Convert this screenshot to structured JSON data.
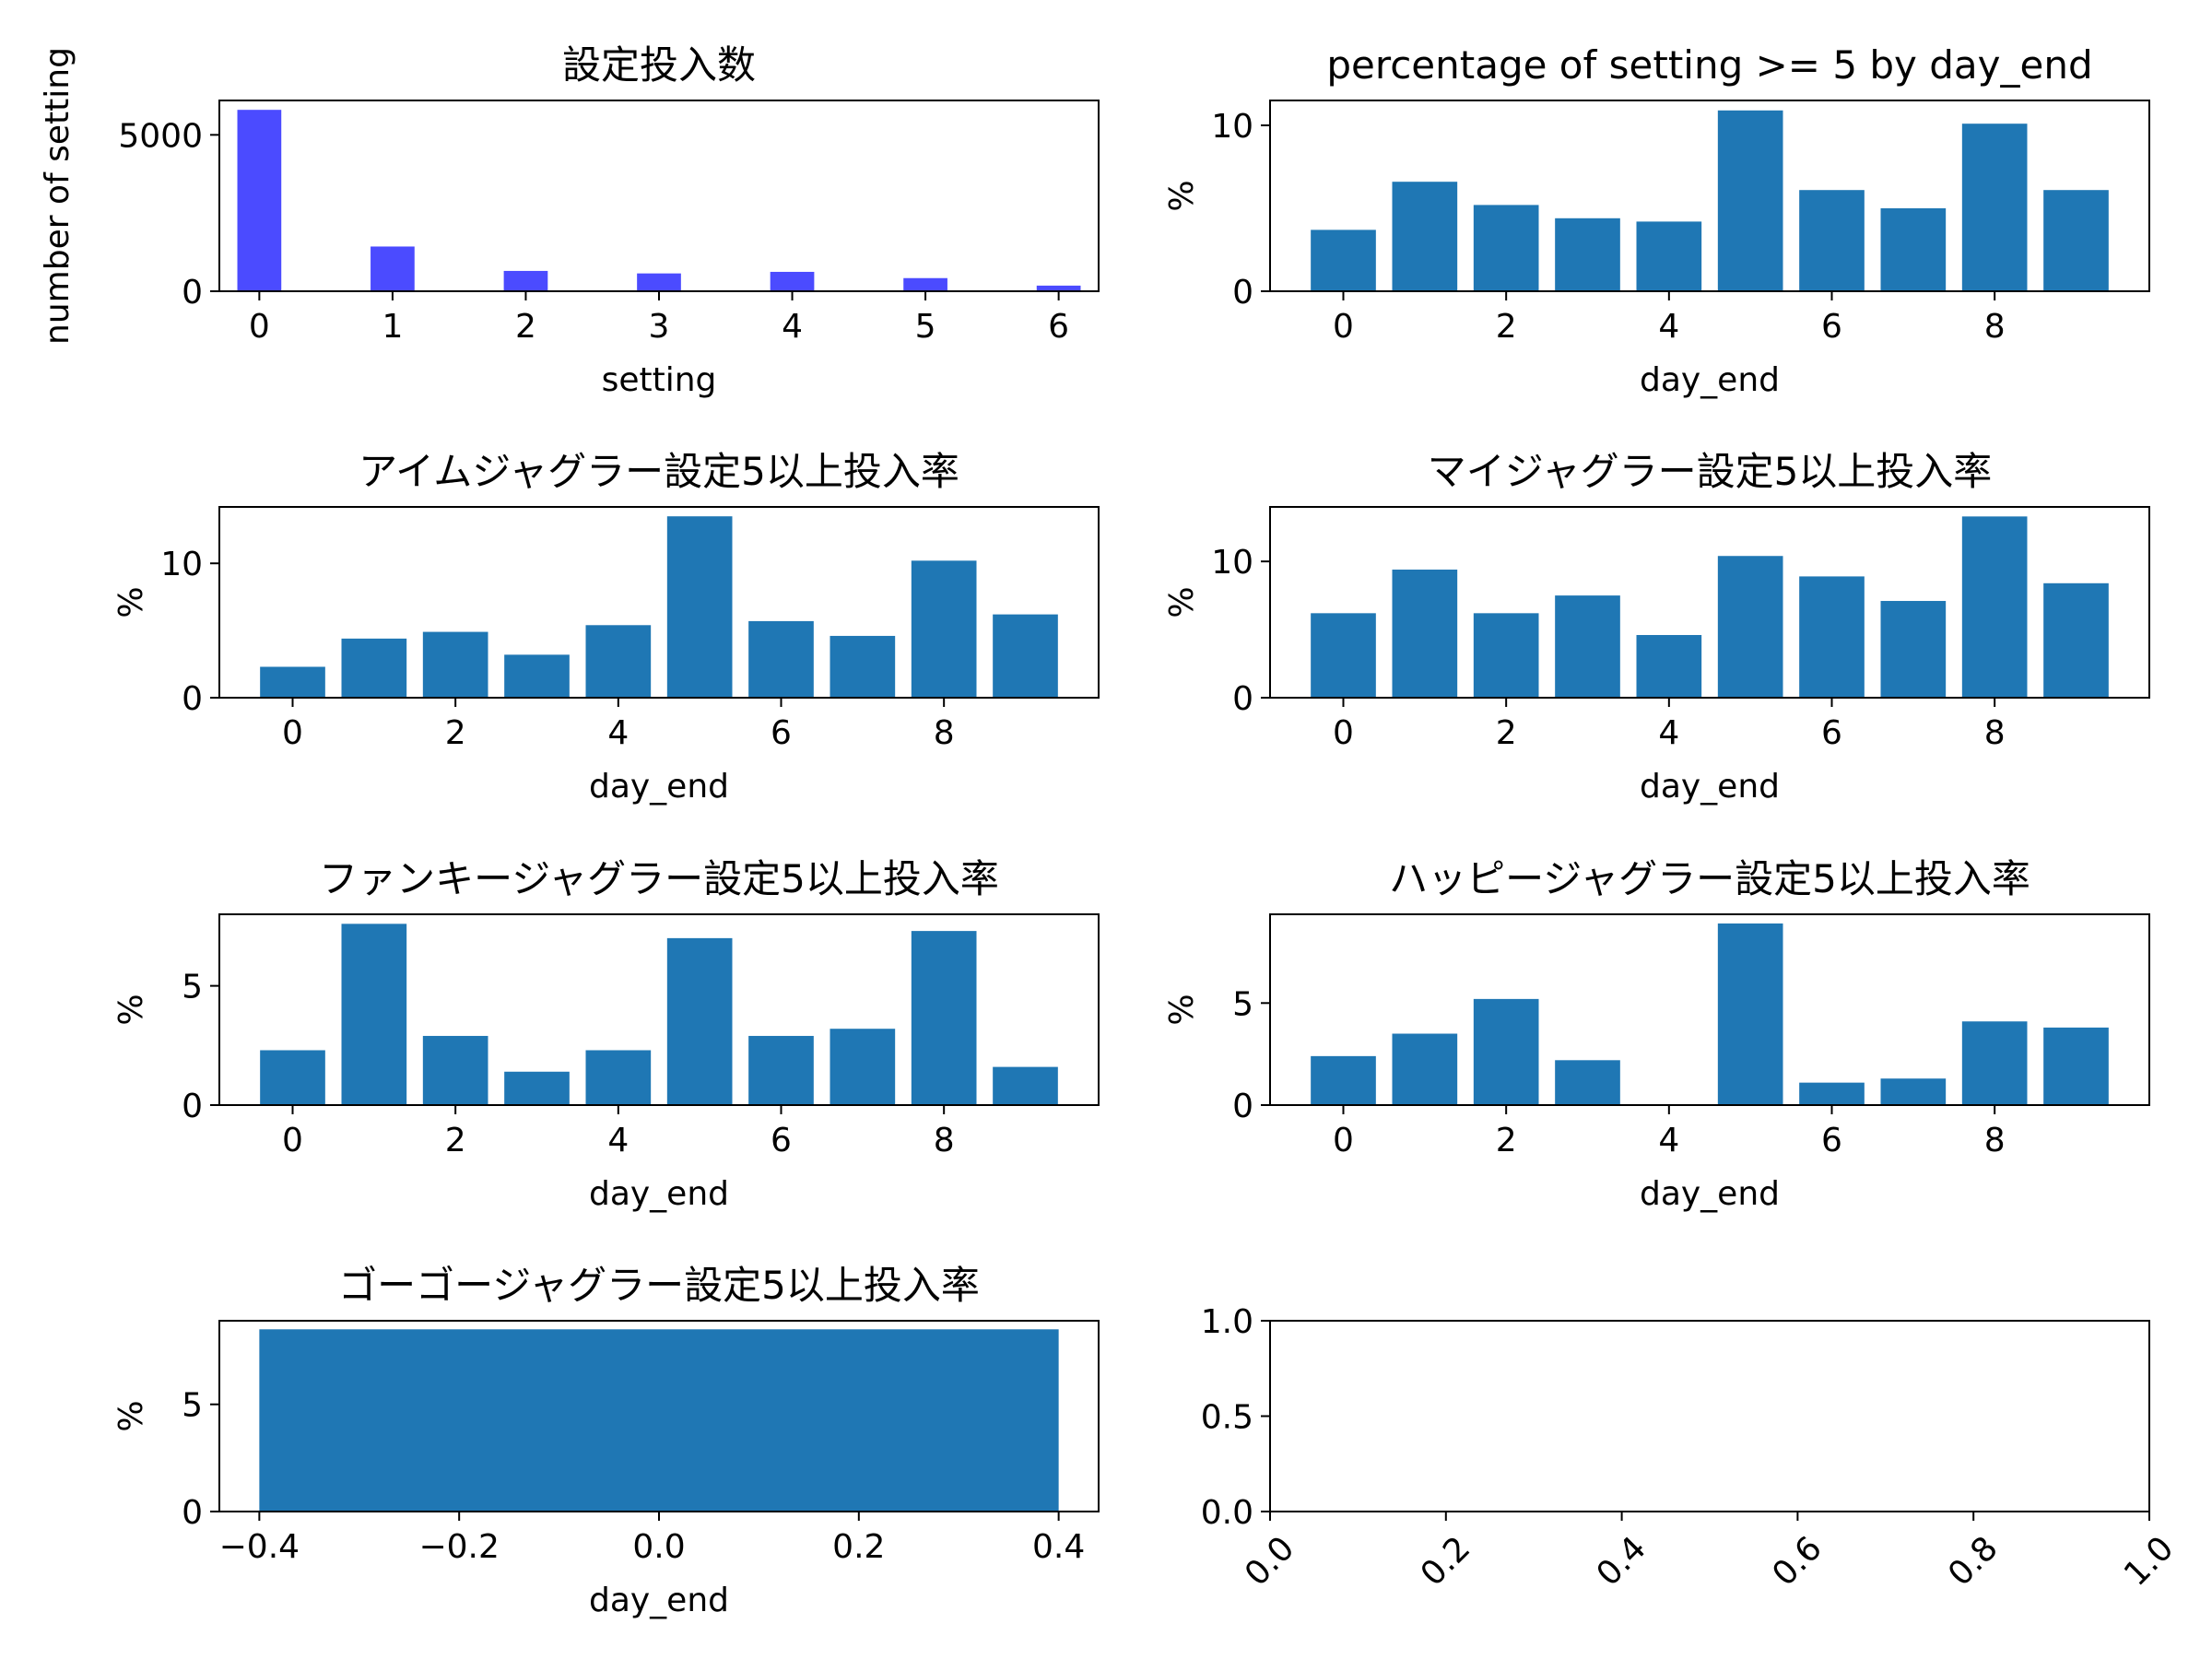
{
  "chart_data": [
    {
      "type": "bar",
      "title": "設定投入数",
      "xlabel": "setting",
      "ylabel": "number of setting",
      "color": "#4b4bff",
      "x": [
        0,
        1,
        2,
        3,
        4,
        5,
        6
      ],
      "values": [
        5800,
        1430,
        650,
        570,
        620,
        420,
        180
      ],
      "xlim": [
        -0.3,
        6.3
      ],
      "ylim": [
        0,
        6100
      ],
      "xticks": [
        "0",
        "1",
        "2",
        "3",
        "4",
        "5",
        "6"
      ],
      "yticks": [
        "0",
        "5000"
      ]
    },
    {
      "type": "bar",
      "title": "percentage of setting >= 5 by day_end",
      "xlabel": "day_end",
      "ylabel": "%",
      "color": "#1f77b4",
      "x": [
        0,
        1,
        2,
        3,
        4,
        5,
        6,
        7,
        8,
        9
      ],
      "values": [
        3.7,
        6.6,
        5.2,
        4.4,
        4.2,
        10.9,
        6.1,
        5.0,
        10.1,
        6.1
      ],
      "xlim": [
        -0.9,
        9.9
      ],
      "ylim": [
        0,
        11.5
      ],
      "xticks": [
        "0",
        "2",
        "4",
        "6",
        "8"
      ],
      "yticks": [
        "0",
        "10"
      ]
    },
    {
      "type": "bar",
      "title": "アイムジャグラー設定5以上投入率",
      "xlabel": "day_end",
      "ylabel": "%",
      "color": "#1f77b4",
      "x": [
        0,
        1,
        2,
        3,
        4,
        5,
        6,
        7,
        8,
        9
      ],
      "values": [
        2.3,
        4.4,
        4.9,
        3.2,
        5.4,
        13.5,
        5.7,
        4.6,
        10.2,
        6.2
      ],
      "xlim": [
        -0.9,
        9.9
      ],
      "ylim": [
        0,
        14.2
      ],
      "xticks": [
        "0",
        "2",
        "4",
        "6",
        "8"
      ],
      "yticks": [
        "0",
        "10"
      ]
    },
    {
      "type": "bar",
      "title": "マイジャグラー設定5以上投入率",
      "xlabel": "day_end",
      "ylabel": "%",
      "color": "#1f77b4",
      "x": [
        0,
        1,
        2,
        3,
        4,
        5,
        6,
        7,
        8,
        9
      ],
      "values": [
        6.2,
        9.4,
        6.2,
        7.5,
        4.6,
        10.4,
        8.9,
        7.1,
        13.3,
        8.4
      ],
      "xlim": [
        -0.9,
        9.9
      ],
      "ylim": [
        0,
        14.0
      ],
      "xticks": [
        "0",
        "2",
        "4",
        "6",
        "8"
      ],
      "yticks": [
        "0",
        "10"
      ]
    },
    {
      "type": "bar",
      "title": "ファンキージャグラー設定5以上投入率",
      "xlabel": "day_end",
      "ylabel": "%",
      "color": "#1f77b4",
      "x": [
        0,
        1,
        2,
        3,
        4,
        5,
        6,
        7,
        8,
        9
      ],
      "values": [
        2.3,
        7.6,
        2.9,
        1.4,
        2.3,
        7.0,
        2.9,
        3.2,
        7.3,
        1.6
      ],
      "xlim": [
        -0.9,
        9.9
      ],
      "ylim": [
        0,
        8.0
      ],
      "xticks": [
        "0",
        "2",
        "4",
        "6",
        "8"
      ],
      "yticks": [
        "0",
        "5"
      ]
    },
    {
      "type": "bar",
      "title": "ハッピージャグラー設定5以上投入率",
      "xlabel": "day_end",
      "ylabel": "%",
      "color": "#1f77b4",
      "x": [
        0,
        1,
        2,
        3,
        4,
        5,
        6,
        7,
        8,
        9
      ],
      "values": [
        2.4,
        3.5,
        5.2,
        2.2,
        0,
        8.9,
        1.1,
        1.3,
        4.1,
        3.8
      ],
      "xlim": [
        -0.9,
        9.9
      ],
      "ylim": [
        0,
        9.35
      ],
      "xticks": [
        "0",
        "2",
        "4",
        "6",
        "8"
      ],
      "yticks": [
        "0",
        "5"
      ]
    },
    {
      "type": "bar",
      "title": "ゴーゴージャグラー設定5以上投入率",
      "xlabel": "day_end",
      "ylabel": "%",
      "color": "#1f77b4",
      "x": [
        0
      ],
      "values": [
        8.5
      ],
      "xlim": [
        -0.44,
        0.44
      ],
      "ylim": [
        0,
        8.9
      ],
      "xticks": [
        "−0.4",
        "−0.2",
        "0.0",
        "0.2",
        "0.4"
      ],
      "yticks": [
        "0",
        "5"
      ]
    },
    {
      "type": "empty",
      "title": "",
      "xlabel": "",
      "ylabel": "",
      "x": [],
      "values": [],
      "xlim": [
        0,
        1
      ],
      "ylim": [
        0,
        1
      ],
      "xticks": [
        "0.0",
        "0.2",
        "0.4",
        "0.6",
        "0.8",
        "1.0"
      ],
      "yticks": [
        "0.0",
        "0.5",
        "1.0"
      ]
    }
  ]
}
